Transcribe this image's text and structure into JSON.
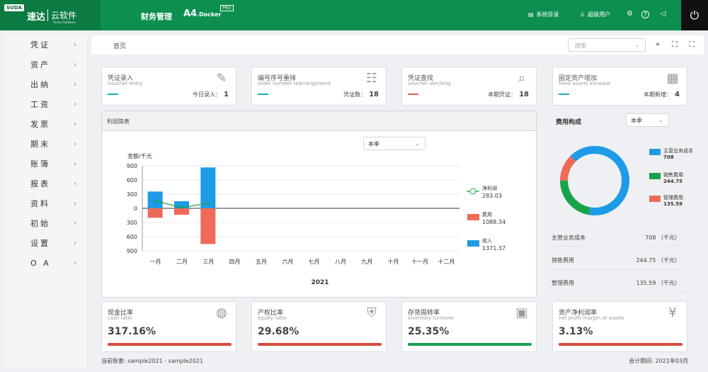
{
  "logo": {
    "tag": "SUDA",
    "name": "速达",
    "cloud": "云软件",
    "sub": "Online Software"
  },
  "header": {
    "module": "财务管理",
    "product": "A4",
    "product_suffix": ".Docker",
    "badge": "PRO",
    "catalog": "系统目录",
    "user": "超级用户"
  },
  "sidebar": {
    "items": [
      {
        "label": "凭证"
      },
      {
        "label": "资产"
      },
      {
        "label": "出纳"
      },
      {
        "label": "工资"
      },
      {
        "label": "发票"
      },
      {
        "label": "期末"
      },
      {
        "label": "账簿"
      },
      {
        "label": "报表"
      },
      {
        "label": "资料"
      },
      {
        "label": "初始"
      },
      {
        "label": "设置"
      },
      {
        "label": "O A"
      }
    ]
  },
  "breadcrumb": {
    "home": "首页",
    "search_placeholder": "搜索"
  },
  "cards": [
    {
      "title": "凭证录入",
      "subtitle": "voucher entry",
      "count_label": "今日录入：",
      "count": "1",
      "color": "#1ab0b8",
      "icon": "edit-document-icon"
    },
    {
      "title": "编号序号重排",
      "subtitle": "order number rearrangement",
      "count_label": "凭证数：",
      "count": "18",
      "color": "#1ab0b8",
      "icon": "list-document-icon"
    },
    {
      "title": "凭证查找",
      "subtitle": "voucher serching",
      "count_label": "本期凭证：",
      "count": "18",
      "color": "#e05a4f",
      "icon": "search-document-icon"
    },
    {
      "title": "固定资产增加",
      "subtitle": "fixed assets increase",
      "count_label": "本期新增：",
      "count": "4",
      "color": "#1ab0b8",
      "icon": "building-add-icon"
    }
  ],
  "profit_panel": {
    "title": "利润简表",
    "period": "本季",
    "year": "2021"
  },
  "chart_data": {
    "type": "bar",
    "title": "",
    "ylabel": "金额/千元",
    "xlabel": "2021",
    "categories": [
      "一月",
      "二月",
      "三月",
      "四月",
      "五月",
      "六月",
      "七月",
      "八月",
      "九月",
      "十月",
      "十一月",
      "十二月"
    ],
    "ylim": [
      -900,
      900
    ],
    "yticks": [
      "900",
      "600",
      "300",
      "0",
      "300",
      "600",
      "900"
    ],
    "series": [
      {
        "name": "收入",
        "type": "bar",
        "color": "#1e9be6",
        "values": [
          355,
          150,
          865,
          0,
          0,
          0,
          0,
          0,
          0,
          0,
          0,
          0
        ]
      },
      {
        "name": "费用",
        "type": "bar",
        "color": "#ef6a57",
        "values": [
          -200,
          -135,
          -755,
          0,
          0,
          0,
          0,
          0,
          0,
          0,
          0,
          0
        ]
      },
      {
        "name": "净利润",
        "type": "line",
        "color": "#17a34a",
        "values": [
          155,
          15,
          110,
          null,
          null,
          null,
          null,
          null,
          null,
          null,
          null,
          null
        ]
      }
    ],
    "legend": [
      {
        "name": "净利润",
        "value": "283.03",
        "color": "#17a34a"
      },
      {
        "name": "费用",
        "value": "1088.34",
        "color": "#ef6a57"
      },
      {
        "name": "收入",
        "value": "1371.37",
        "color": "#1e9be6"
      }
    ]
  },
  "expense": {
    "title": "费用构成",
    "period": "本季",
    "chart_data": {
      "type": "pie",
      "slices": [
        {
          "name": "主营业务成本",
          "value": 708,
          "color": "#1e9be6"
        },
        {
          "name": "销售费用",
          "value": 244.75,
          "color": "#17a34a"
        },
        {
          "name": "管理费用",
          "value": 135.59,
          "color": "#ef6a57"
        }
      ]
    },
    "legend": [
      {
        "name": "主营业务成本",
        "value": "708"
      },
      {
        "name": "销售费用",
        "value": "244.75"
      },
      {
        "name": "管理费用",
        "value": "135.59"
      }
    ],
    "rows": [
      {
        "label": "主营业务成本",
        "value": "708  （千元）"
      },
      {
        "label": "销售费用",
        "value": "244.75  （千元）"
      },
      {
        "label": "管理费用",
        "value": "135.59  （千元）"
      }
    ]
  },
  "kpis": [
    {
      "title": "现金比率",
      "subtitle": "cash ratio",
      "value": "317.16%",
      "color": "#d94a3d",
      "fill": 1.0,
      "icon": "coins-icon"
    },
    {
      "title": "产权比率",
      "subtitle": "equity ratio",
      "value": "29.68%",
      "color": "#d94a3d",
      "fill": 1.0,
      "icon": "shield-r-icon"
    },
    {
      "title": "存货周转率",
      "subtitle": "inventory turnover",
      "value": "25.35%",
      "color": "#15a14f",
      "fill": 1.0,
      "icon": "box-icon"
    },
    {
      "title": "资产净利润率",
      "subtitle": "net profit margin of assets",
      "value": "3.13%",
      "color": "#d94a3d",
      "fill": 1.0,
      "icon": "yen-coins-icon"
    }
  ],
  "footer": {
    "account": "当前账套: sample2021 - sample2021",
    "period": "会计期间: 2021年03月"
  }
}
